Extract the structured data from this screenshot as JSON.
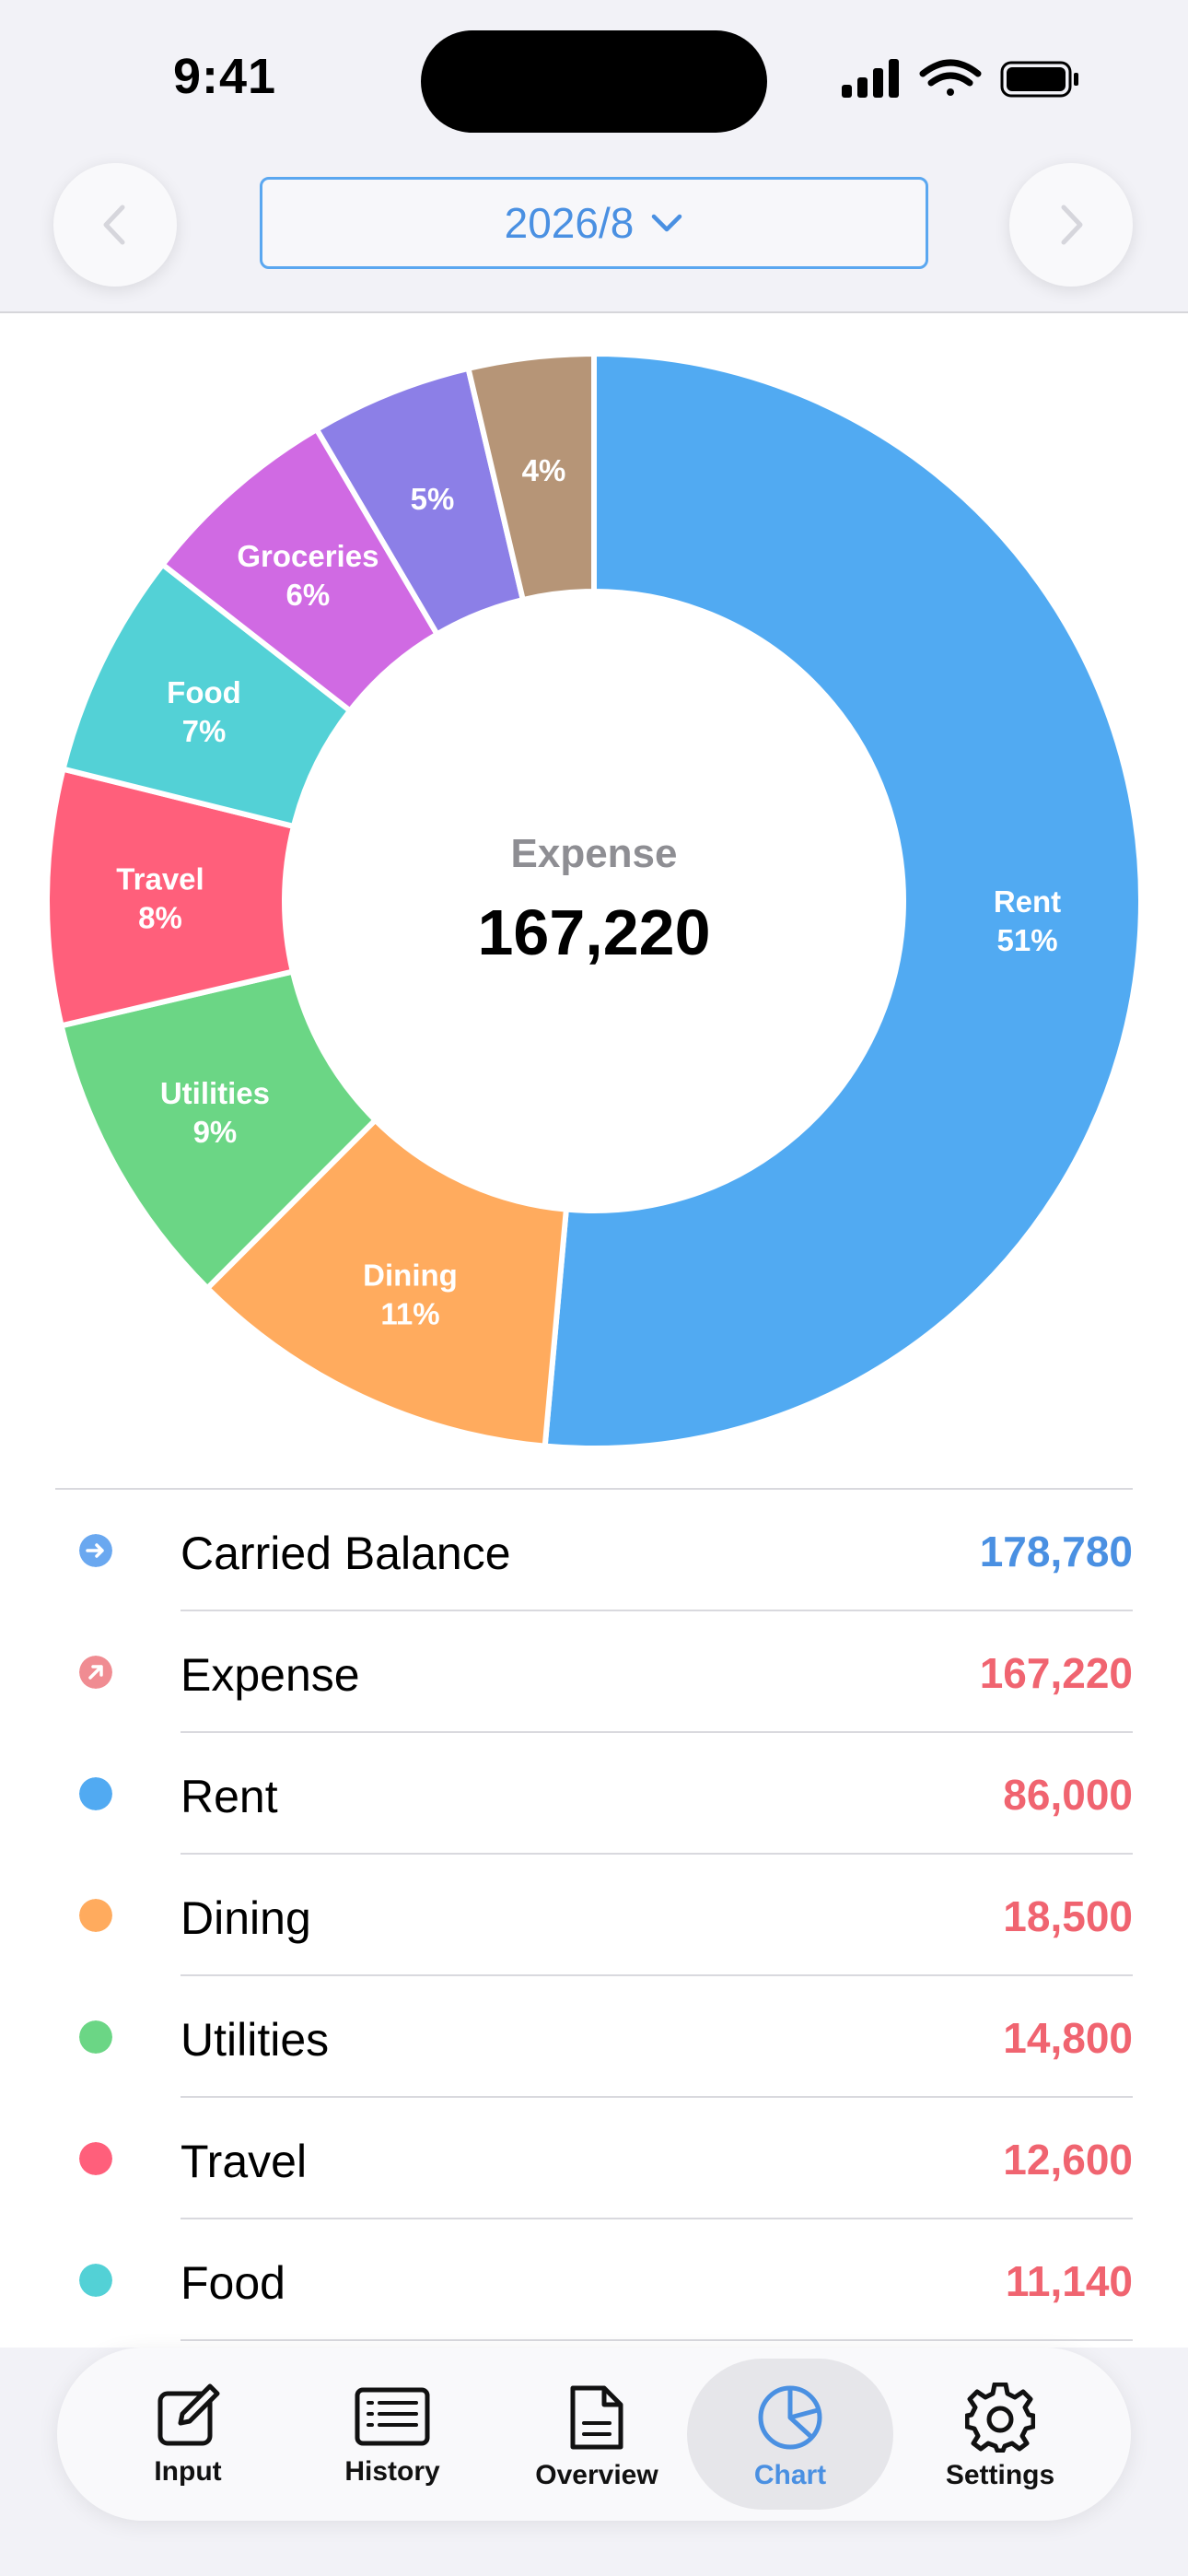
{
  "status_bar": {
    "time": "9:41"
  },
  "header": {
    "month": "2026/8",
    "colors": {
      "accent": "#4a90e2"
    }
  },
  "chart_data": {
    "type": "pie",
    "donut": true,
    "center_label": "Expense",
    "center_value": "167,220",
    "slices": [
      {
        "name": "Rent",
        "value": 86000,
        "label": "Rent",
        "percent": "51%",
        "color": "#51aaf2"
      },
      {
        "name": "Dining",
        "value": 18500,
        "label": "Dining",
        "percent": "11%",
        "color": "#ffab5e"
      },
      {
        "name": "Utilities",
        "value": 14800,
        "label": "Utilities",
        "percent": "9%",
        "color": "#6bd685"
      },
      {
        "name": "Travel",
        "value": 12600,
        "label": "Travel",
        "percent": "8%",
        "color": "#ff5f7b"
      },
      {
        "name": "Food",
        "value": 11140,
        "label": "Food",
        "percent": "7%",
        "color": "#53d1d6"
      },
      {
        "name": "Groceries",
        "value": 10030,
        "label": "Groceries",
        "percent": "6%",
        "color": "#d06ae3"
      },
      {
        "name": "",
        "value": 7980,
        "label": "",
        "percent": "5%",
        "color": "#8c7fe7"
      },
      {
        "name": "",
        "value": 6170,
        "label": "",
        "percent": "4%",
        "color": "#b69577"
      }
    ]
  },
  "list": {
    "rows": [
      {
        "icon": "arrow-right-circle-icon",
        "label": "Carried Balance",
        "value": "178,780",
        "color": "#4a90e2",
        "icon_color": "#6aa8f0"
      },
      {
        "icon": "arrow-up-right-circle-icon",
        "label": "Expense",
        "value": "167,220",
        "color": "#f06470",
        "icon_color": "#f08c92"
      },
      {
        "icon": "dot-icon",
        "label": "Rent",
        "value": "86,000",
        "color": "#f06470",
        "icon_color": "#51aaf2"
      },
      {
        "icon": "dot-icon",
        "label": "Dining",
        "value": "18,500",
        "color": "#f06470",
        "icon_color": "#ffab5e"
      },
      {
        "icon": "dot-icon",
        "label": "Utilities",
        "value": "14,800",
        "color": "#f06470",
        "icon_color": "#6bd685"
      },
      {
        "icon": "dot-icon",
        "label": "Travel",
        "value": "12,600",
        "color": "#f06470",
        "icon_color": "#ff5f7b"
      },
      {
        "icon": "dot-icon",
        "label": "Food",
        "value": "11,140",
        "color": "#f06470",
        "icon_color": "#53d1d6"
      }
    ]
  },
  "tabbar": {
    "tabs": [
      {
        "label": "Input",
        "icon": "edit-icon"
      },
      {
        "label": "History",
        "icon": "list-icon"
      },
      {
        "label": "Overview",
        "icon": "document-icon"
      },
      {
        "label": "Chart",
        "icon": "pie-chart-icon",
        "active": true
      },
      {
        "label": "Settings",
        "icon": "gear-icon"
      }
    ]
  }
}
